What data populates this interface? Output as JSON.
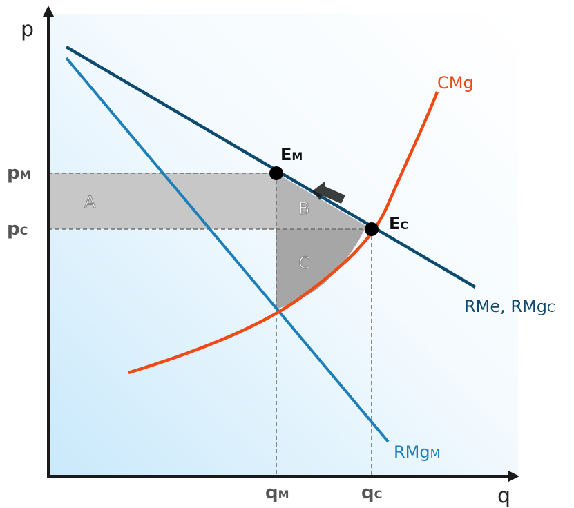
{
  "axes": {
    "y_label": "p",
    "x_label": "q"
  },
  "ticks": {
    "pm": {
      "main": "p",
      "sub": "M"
    },
    "pc": {
      "main": "p",
      "sub": "C"
    },
    "qm": {
      "main": "q",
      "sub": "M"
    },
    "qc": {
      "main": "q",
      "sub": "C"
    }
  },
  "points": {
    "em": {
      "main": "E",
      "sub": "M"
    },
    "ec": {
      "main": "E",
      "sub": "C"
    }
  },
  "regions": {
    "a": "A",
    "b": "B",
    "c": "C"
  },
  "curves": {
    "demand": {
      "main": "RMe, RMg",
      "sub": "C",
      "color": "#0d4a6e"
    },
    "marginal_revenue": {
      "main": "RMg",
      "sub": "M",
      "color": "#1e7fb8"
    },
    "marginal_cost": {
      "main": "CMg",
      "sub": "",
      "color": "#ef4a14"
    }
  },
  "colors": {
    "shade_light": "#c9c9c9",
    "shade_dark": "#a9a9a9",
    "background_gradient": "#d2ecfa",
    "axis": "#1a1a1a",
    "dashed": "#777777"
  }
}
